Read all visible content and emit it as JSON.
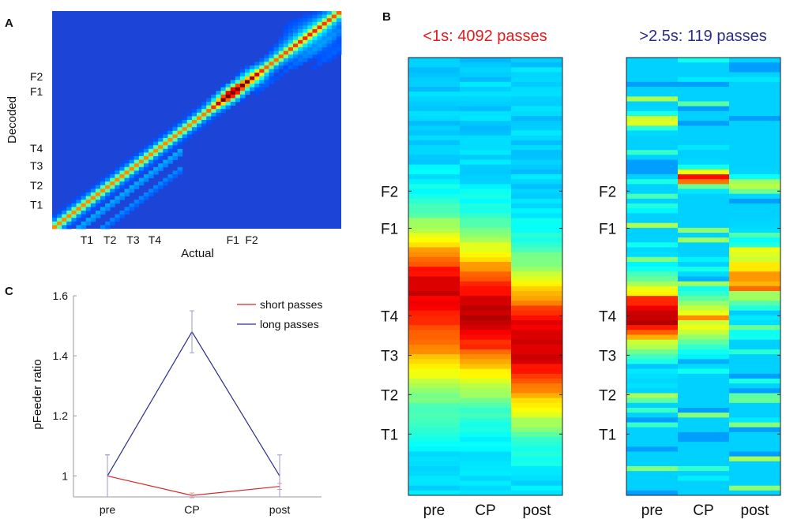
{
  "panel_labels": {
    "a": "A",
    "b": "B",
    "c": "C"
  },
  "chart_data": [
    {
      "type": "heatmap",
      "panel": "A",
      "xlabel": "Actual",
      "ylabel": "Decoded",
      "x_ticks": [
        {
          "label": "T1",
          "pos": 0.12
        },
        {
          "label": "T2",
          "pos": 0.2
        },
        {
          "label": "T3",
          "pos": 0.28
        },
        {
          "label": "T4",
          "pos": 0.355
        },
        {
          "label": "F1",
          "pos": 0.625
        },
        {
          "label": "F2",
          "pos": 0.69
        }
      ],
      "y_ticks": [
        {
          "label": "F2",
          "pos": 0.7
        },
        {
          "label": "F1",
          "pos": 0.63
        },
        {
          "label": "T4",
          "pos": 0.37
        },
        {
          "label": "T3",
          "pos": 0.29
        },
        {
          "label": "T2",
          "pos": 0.2
        },
        {
          "label": "T1",
          "pos": 0.11
        }
      ],
      "structure": "diagonal band from lower-left to upper-right, peak intensity near F1, secondary parallel bands below the diagonal",
      "colormap": "jet"
    },
    {
      "type": "heatmap",
      "panel": "B-left",
      "title": "<1s: 4092 passes",
      "title_color": "#e31a1c",
      "x_categories": [
        "pre",
        "CP",
        "post"
      ],
      "y_ticks": [
        "F2",
        "F1",
        "T4",
        "T3",
        "T2",
        "T1"
      ],
      "peak_position": {
        "pre": 0.545,
        "CP": 0.585,
        "post": 0.655
      },
      "colormap": "jet"
    },
    {
      "type": "heatmap",
      "panel": "B-right",
      "title": ">2.5s: 119 passes",
      "title_color": "#2b2b8a",
      "x_categories": [
        "pre",
        "CP",
        "post"
      ],
      "y_ticks": [
        "F2",
        "F1",
        "T4",
        "T3",
        "T2",
        "T1"
      ],
      "colormap": "jet"
    },
    {
      "type": "line",
      "panel": "C",
      "ylabel": "pFeeder ratio",
      "categories": [
        "pre",
        "CP",
        "post"
      ],
      "ylim": [
        0.93,
        1.6
      ],
      "yticks": [
        1,
        1.2,
        1.4,
        1.6
      ],
      "series": [
        {
          "name": "short passes",
          "color": "#d62728",
          "values": [
            1.0,
            0.935,
            0.965
          ],
          "errors": [
            0.07,
            0.008,
            0.01
          ]
        },
        {
          "name": "long passes",
          "color": "#2c2c8c",
          "values": [
            1.0,
            1.48,
            1.0
          ],
          "errors": [
            0.07,
            0.07,
            0.07
          ]
        }
      ],
      "legend_position": "top-right",
      "grid": false
    }
  ]
}
